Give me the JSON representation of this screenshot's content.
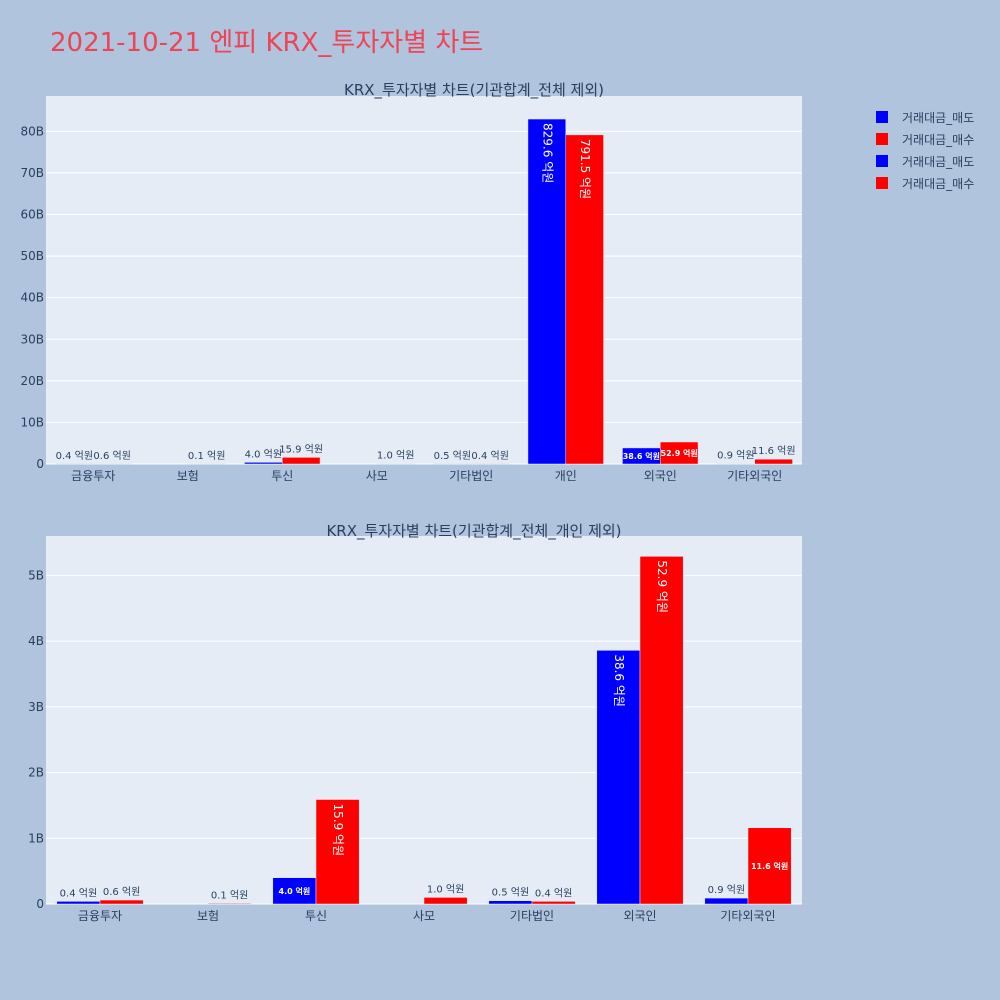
{
  "page": {
    "title": "2021-10-21 엔피 KRX_투자자별 차트"
  },
  "legend": {
    "items": [
      {
        "label": "거래대금_매도",
        "color": "#0000ff"
      },
      {
        "label": "거래대금_매수",
        "color": "#ff0000"
      },
      {
        "label": "거래대금_매도",
        "color": "#0000ff"
      },
      {
        "label": "거래대금_매수",
        "color": "#ff0000"
      }
    ]
  },
  "chart_data": [
    {
      "type": "bar",
      "title": "KRX_투자자별 차트(기관합계_전체 제외)",
      "categories": [
        "금융투자",
        "보험",
        "투신",
        "사모",
        "기타법인",
        "개인",
        "외국인",
        "기타외국인"
      ],
      "series": [
        {
          "name": "거래대금_매도",
          "color": "#0000ff",
          "values": [
            0.04,
            0.0,
            0.4,
            0.0,
            0.05,
            82.96,
            3.86,
            0.09
          ],
          "labels": [
            "0.4 억원",
            "",
            "4.0 억원",
            "",
            "0.5 억원",
            "829.6 억원",
            "38.6 억원",
            "0.9 억원"
          ]
        },
        {
          "name": "거래대금_매수",
          "color": "#ff0000",
          "values": [
            0.06,
            0.01,
            1.59,
            0.1,
            0.04,
            79.15,
            5.29,
            1.16
          ],
          "labels": [
            "0.6 억원",
            "0.1 억원",
            "15.9 억원",
            "1.0 억원",
            "0.4 억원",
            "791.5 억원",
            "52.9 억원",
            "11.6 억원"
          ]
        }
      ],
      "yticks": [
        0,
        10,
        20,
        30,
        40,
        50,
        60,
        70,
        80
      ],
      "ytick_labels": [
        "0",
        "10B",
        "20B",
        "30B",
        "40B",
        "50B",
        "60B",
        "70B",
        "80B"
      ],
      "ylim": [
        0,
        88.5
      ],
      "grid": true
    },
    {
      "type": "bar",
      "title": "KRX_투자자별 차트(기관합계_전체_개인 제외)",
      "categories": [
        "금융투자",
        "보험",
        "투신",
        "사모",
        "기타법인",
        "외국인",
        "기타외국인"
      ],
      "series": [
        {
          "name": "거래대금_매도",
          "color": "#0000ff",
          "values": [
            0.04,
            0.0,
            0.4,
            0.0,
            0.05,
            3.86,
            0.09
          ],
          "labels": [
            "0.4 억원",
            "",
            "4.0 억원",
            "",
            "0.5 억원",
            "38.6 억원",
            "0.9 억원"
          ]
        },
        {
          "name": "거래대금_매수",
          "color": "#ff0000",
          "values": [
            0.06,
            0.01,
            1.59,
            0.1,
            0.04,
            5.29,
            1.16
          ],
          "labels": [
            "0.6 억원",
            "0.1 억원",
            "15.9 억원",
            "1.0 억원",
            "0.4 억원",
            "52.9 억원",
            "11.6 억원"
          ]
        }
      ],
      "yticks": [
        0,
        1,
        2,
        3,
        4,
        5
      ],
      "ytick_labels": [
        "0",
        "1B",
        "2B",
        "3B",
        "4B",
        "5B"
      ],
      "ylim": [
        0,
        5.6
      ],
      "grid": true
    }
  ]
}
